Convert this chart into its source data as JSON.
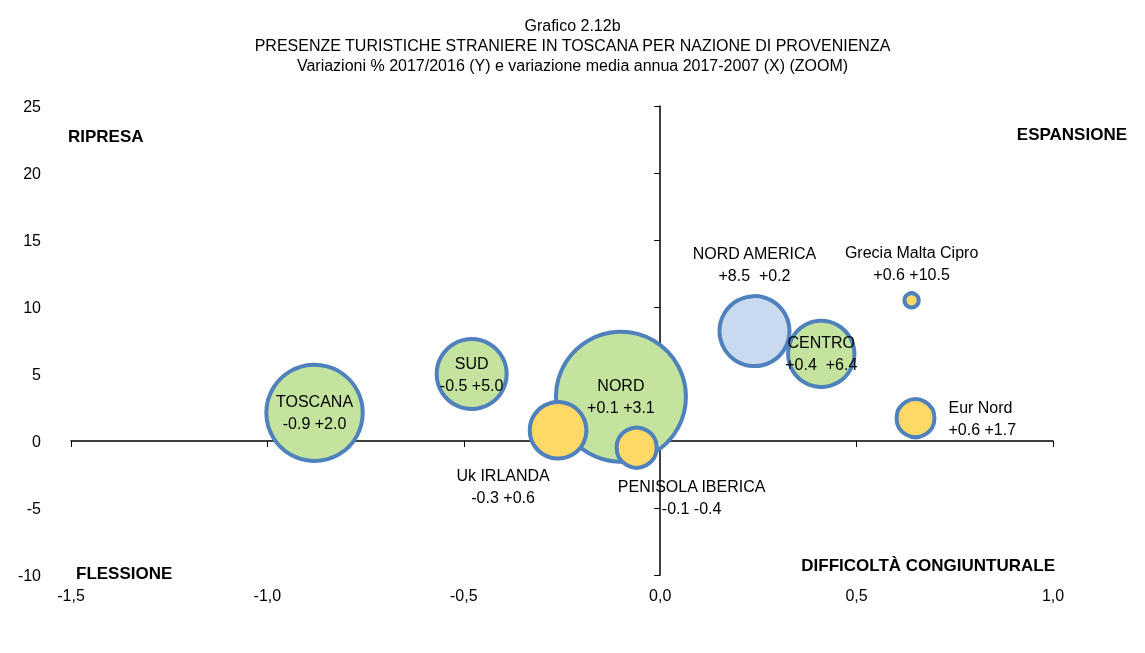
{
  "chart_data": {
    "type": "bubble",
    "title": "Grafico 2.12b",
    "subtitle": "PRESENZE TURISTICHE STRANIERE IN TOSCANA PER NAZIONE DI PROVENIENZA\nVariazioni % 2017/2016 (Y) e variazione media annua 2017-2007 (X) (ZOOM)",
    "xlim": [
      -1.5,
      1.0
    ],
    "xticks": [
      {
        "value": -1.5,
        "label": "-1,5"
      },
      {
        "value": -1.0,
        "label": "-1,0"
      },
      {
        "value": -0.5,
        "label": "-0,5"
      },
      {
        "value": 0,
        "label": "0,0"
      },
      {
        "value": 0.5,
        "label": "0,5"
      },
      {
        "value": 1.0,
        "label": "1,0"
      }
    ],
    "ylim": [
      -10,
      25
    ],
    "yticks": [
      -10,
      -5,
      0,
      5,
      10,
      15,
      20,
      25
    ],
    "legend": false,
    "annotations": [
      "RIPRESA",
      "ESPANSIONE",
      "FLESSIONE",
      "DIFFICOLTÀ CONGIUNTURALE"
    ],
    "series": [
      {
        "name": "TOSCANA",
        "color": "#c3e39e",
        "x": [
          -0.88
        ],
        "values": [
          2.1
        ],
        "sizes": [
          0.55
        ],
        "value_labels": [
          "-0.9 +2.0"
        ]
      },
      {
        "name": "SUD",
        "color": "#c3e39e",
        "x": [
          -0.48
        ],
        "values": [
          5.0
        ],
        "sizes": [
          0.29
        ],
        "value_labels": [
          "-0.5 +5.0"
        ]
      },
      {
        "name": "NORD",
        "color": "#c3e39e",
        "x": [
          -0.1
        ],
        "values": [
          3.3
        ],
        "sizes": [
          1
        ],
        "value_labels": [
          "+0.1 +3.1"
        ]
      },
      {
        "name": "NORD AMERICA",
        "color": "#c9d9ee",
        "x": [
          0.24
        ],
        "values": [
          8.2
        ],
        "sizes": [
          0.29
        ],
        "value_labels": [
          "+8.5  +0.2"
        ]
      },
      {
        "name": "CENTRO",
        "color": "#c3e39e",
        "x": [
          0.41
        ],
        "values": [
          6.5
        ],
        "sizes": [
          0.26
        ],
        "value_labels": [
          "+0.4  +6.4"
        ]
      },
      {
        "name": "Grecia Malta Cipro",
        "color": "#ffd966",
        "x": [
          0.64
        ],
        "values": [
          10.5
        ],
        "sizes": [
          0.012
        ],
        "value_labels": [
          "+0.6 +10.5"
        ]
      },
      {
        "name": "Eur Nord",
        "color": "#ffd966",
        "x": [
          0.65
        ],
        "values": [
          1.7
        ],
        "sizes": [
          0.085
        ],
        "value_labels": [
          "+0.6 +1.7"
        ]
      },
      {
        "name": "Uk IRLANDA",
        "color": "#ffd966",
        "x": [
          -0.26
        ],
        "values": [
          0.8
        ],
        "sizes": [
          0.19
        ],
        "value_labels": [
          "-0.3 +0.6"
        ]
      },
      {
        "name": "PENISOLA IBERICA",
        "color": "#ffd966",
        "x": [
          -0.06
        ],
        "values": [
          -0.5
        ],
        "sizes": [
          0.095
        ],
        "value_labels": [
          "-0.1 -0.4"
        ]
      }
    ]
  }
}
